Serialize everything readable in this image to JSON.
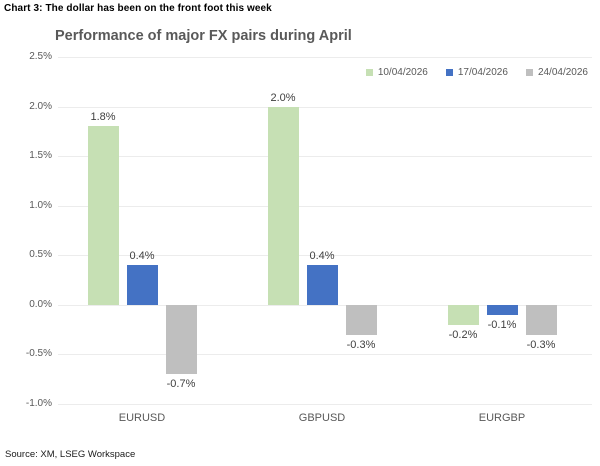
{
  "header": {
    "title": "Chart 3: The dollar has been on the front foot this week"
  },
  "source": "Source: XM, LSEG Workspace",
  "chart_data": {
    "type": "bar",
    "title": "Performance of major FX pairs during April",
    "categories": [
      "EURUSD",
      "GBPUSD",
      "EURGBP"
    ],
    "series": [
      {
        "name": "10/04/2026",
        "color": "#c6e0b4",
        "values": [
          1.8,
          2.0,
          -0.2
        ],
        "labels": [
          "1.8%",
          "2.0%",
          "-0.2%"
        ]
      },
      {
        "name": "17/04/2026",
        "color": "#4472c4",
        "values": [
          0.4,
          0.4,
          -0.1
        ],
        "labels": [
          "0.4%",
          "0.4%",
          "-0.1%"
        ]
      },
      {
        "name": "24/04/2026",
        "color": "#bfbfbf",
        "values": [
          -0.7,
          -0.3,
          -0.3
        ],
        "labels": [
          "-0.7%",
          "-0.3%",
          "-0.3%"
        ]
      }
    ],
    "y_axis": {
      "min": -1.0,
      "max": 2.5,
      "step": 0.5,
      "tick_labels": [
        "2.5%",
        "2.0%",
        "1.5%",
        "1.0%",
        "0.5%",
        "0.0%",
        "-0.5%",
        "-1.0%"
      ]
    },
    "grid": true,
    "legend_position": "top-right"
  }
}
